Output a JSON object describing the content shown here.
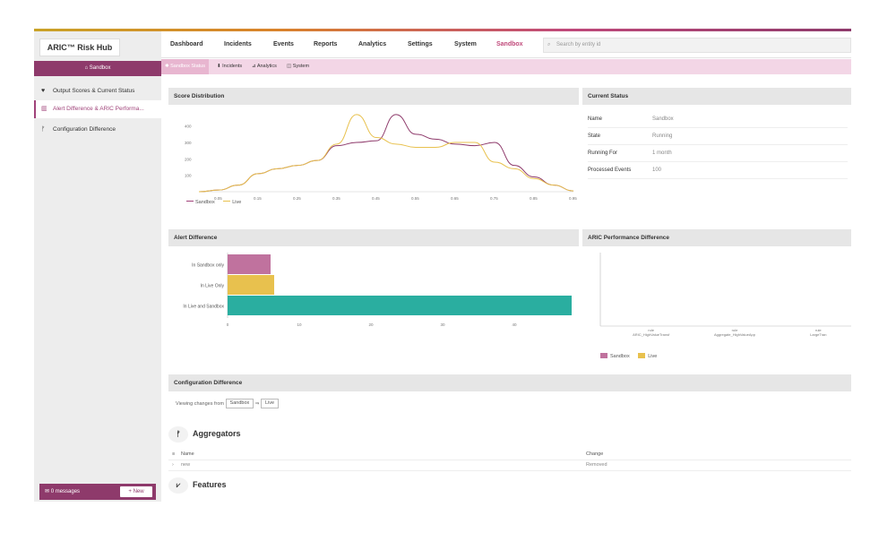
{
  "app": {
    "logo": "ARIC™ Risk Hub",
    "environment": "Sandbox"
  },
  "sidebar": {
    "items": [
      {
        "label": "Output Scores & Current Status",
        "icon": "heart-icon"
      },
      {
        "label": "Alert Difference & ARIC Performa...",
        "icon": "chart-icon"
      },
      {
        "label": "Configuration Difference",
        "icon": "branch-icon"
      }
    ],
    "messages_label": "0 messages",
    "new_label": "+ New"
  },
  "nav": {
    "items": [
      "Dashboard",
      "Incidents",
      "Events",
      "Reports",
      "Analytics",
      "Settings",
      "System",
      "Sandbox"
    ],
    "search_placeholder": "Search by entity id"
  },
  "subnav": {
    "items": [
      "✱ Sandbox Status",
      "⬇ Incidents",
      "⊿ Analytics",
      "◫ System"
    ]
  },
  "score_distribution": {
    "title": "Score Distribution",
    "legend": [
      "Sandbox",
      "Live"
    ]
  },
  "current_status": {
    "title": "Current Status",
    "rows": [
      {
        "key": "Name",
        "value": "Sandbox"
      },
      {
        "key": "State",
        "value": "Running"
      },
      {
        "key": "Running For",
        "value": "1 month"
      },
      {
        "key": "Processed Events",
        "value": "100"
      }
    ]
  },
  "alert_difference": {
    "title": "Alert Difference"
  },
  "performance_difference": {
    "title": "ARIC Performance Difference",
    "legend": [
      "Sandbox",
      "Live"
    ]
  },
  "config_difference": {
    "title": "Configuration Difference",
    "viewing_label": "Viewing changes from",
    "from": "Sandbox",
    "arrow": "⇒",
    "to": "Live",
    "aggregators_title": "Aggregators",
    "features_title": "Features",
    "table": {
      "headers": [
        "Name",
        "Change"
      ],
      "rows": [
        {
          "name": "new",
          "change": "Removed"
        }
      ]
    }
  },
  "colors": {
    "sandbox": "#c0729e",
    "live": "#e8c14e",
    "both": "#2aaea0",
    "accent": "#8e3a6b"
  },
  "chart_data": [
    {
      "type": "line",
      "title": "Score Distribution",
      "x": [
        0.0,
        0.05,
        0.1,
        0.15,
        0.2,
        0.25,
        0.3,
        0.35,
        0.4,
        0.45,
        0.5,
        0.55,
        0.6,
        0.65,
        0.7,
        0.75,
        0.8,
        0.85,
        0.9,
        0.95
      ],
      "x_ticks": [
        "0.05",
        "0.15",
        "0.25",
        "0.35",
        "0.45",
        "0.55",
        "0.65",
        "0.75",
        "0.85",
        "0.95"
      ],
      "ylim": [
        0,
        480
      ],
      "y_ticks": [
        "100",
        "200",
        "300",
        "400"
      ],
      "series": [
        {
          "name": "Sandbox",
          "values": [
            0,
            10,
            40,
            110,
            140,
            160,
            190,
            280,
            300,
            310,
            470,
            350,
            320,
            290,
            280,
            300,
            160,
            90,
            40,
            5
          ]
        },
        {
          "name": "Live",
          "values": [
            0,
            10,
            40,
            110,
            140,
            160,
            190,
            290,
            470,
            330,
            290,
            270,
            270,
            300,
            300,
            180,
            140,
            80,
            40,
            5
          ]
        }
      ]
    },
    {
      "type": "bar",
      "orientation": "horizontal",
      "title": "Alert Difference",
      "categories": [
        "In Sandbox only",
        "In Live Only",
        "In Live and Sandbox"
      ],
      "values": [
        6,
        6.5,
        48
      ],
      "colors": [
        "#c0729e",
        "#e8c14e",
        "#2aaea0"
      ],
      "xlim": [
        0,
        48
      ],
      "x_ticks": [
        "0",
        "10",
        "20",
        "30",
        "40"
      ]
    },
    {
      "type": "bar",
      "title": "ARIC Performance Difference",
      "categories": [
        "ARIC_HighValueTransf",
        "Aggregate_HighValueApp",
        "LargeTran"
      ],
      "category_top_labels": [
        "rule",
        "rule",
        "rule"
      ],
      "series": [
        {
          "name": "Sandbox",
          "values": [
            0,
            0,
            0
          ]
        },
        {
          "name": "Live",
          "values": [
            0,
            0,
            0
          ]
        }
      ]
    }
  ]
}
